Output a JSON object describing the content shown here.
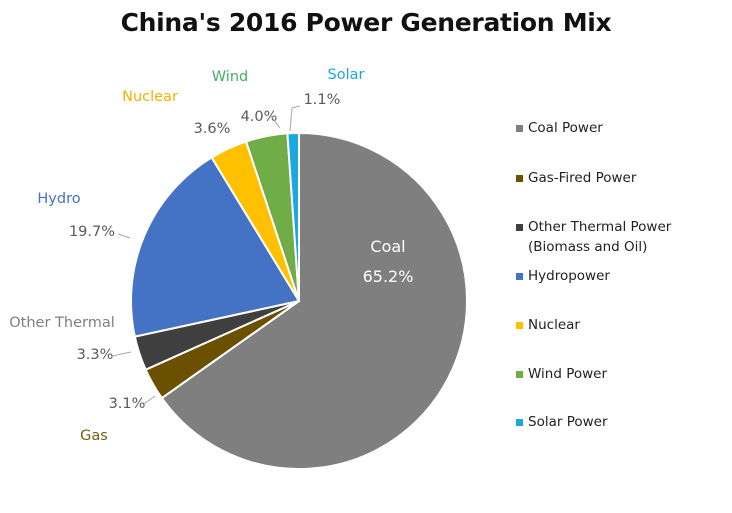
{
  "chart_data": {
    "type": "pie",
    "title": "China's 2016 Power Generation Mix",
    "slices": [
      {
        "label": "Coal",
        "legend": "Coal Power",
        "value": 65.2,
        "value_label": "65.2%",
        "color": "#7f7f7f",
        "label_color": "#ffffff"
      },
      {
        "label": "Gas",
        "legend": "Gas-Fired Power",
        "value": 3.1,
        "value_label": "3.1%",
        "color": "#6b5000",
        "label_color": "#7a5c10"
      },
      {
        "label": "Other  Thermal",
        "legend": "Other Thermal Power",
        "legend_sub": "(Biomass and Oil)",
        "value": 3.3,
        "value_label": "3.3%",
        "color": "#3f3f3f",
        "label_color": "#7f7f7f"
      },
      {
        "label": "Hydro",
        "legend": "Hydropower",
        "value": 19.7,
        "value_label": "19.7%",
        "color": "#4472c4",
        "label_color": "#4472c4"
      },
      {
        "label": "Nuclear",
        "legend": "Nuclear",
        "value": 3.6,
        "value_label": "3.6%",
        "color": "#ffc000",
        "label_color": "#f0b400"
      },
      {
        "label": "Wind",
        "legend": "Wind Power",
        "value": 4.0,
        "value_label": "4.0%",
        "color": "#70ad47",
        "label_color": "#3fae6a"
      },
      {
        "label": "Solar",
        "legend": "Solar Power",
        "value": 1.1,
        "value_label": "1.1%",
        "color": "#1ba8e0",
        "label_color": "#1ba8e0"
      }
    ],
    "start_angle_deg": 0,
    "direction": "clockwise",
    "legend_position": "right"
  }
}
